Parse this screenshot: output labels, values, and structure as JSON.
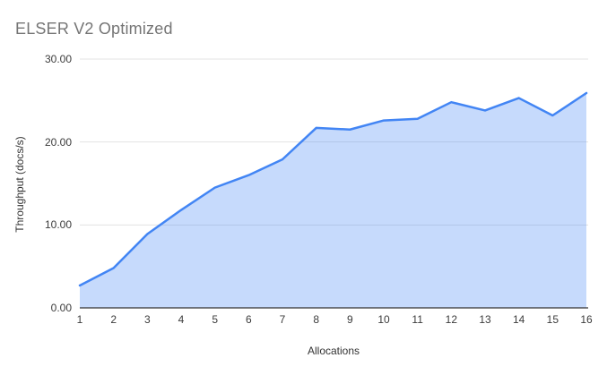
{
  "chart_data": {
    "type": "area",
    "title": "ELSER V2 Optimized",
    "xlabel": "Allocations",
    "ylabel": "Throughput (docs/s)",
    "categories": [
      "1",
      "2",
      "3",
      "4",
      "5",
      "6",
      "7",
      "8",
      "9",
      "10",
      "11",
      "12",
      "13",
      "14",
      "15",
      "16"
    ],
    "series": [
      {
        "name": "Throughput (docs/s)",
        "values": [
          2.7,
          4.8,
          8.9,
          11.8,
          14.5,
          16.0,
          17.9,
          21.7,
          21.5,
          22.6,
          22.8,
          24.8,
          23.8,
          25.3,
          23.2,
          25.9
        ]
      }
    ],
    "ylim": [
      0,
      30
    ],
    "y_ticks": [
      0,
      10,
      20,
      30
    ],
    "y_tick_labels": [
      "0.00",
      "10.00",
      "20.00",
      "30.00"
    ],
    "grid": "horizontal-only",
    "legend": "none",
    "colors": {
      "line": "#4285f4",
      "fill": "#4285f4",
      "fill_opacity": "0.3",
      "gridline": "#e3e3e3",
      "baseline": "#333333",
      "title_text": "#757575",
      "axis_tick_text": "#3c3c3c",
      "axis_title_text": "#333333",
      "background": "#ffffff"
    }
  }
}
